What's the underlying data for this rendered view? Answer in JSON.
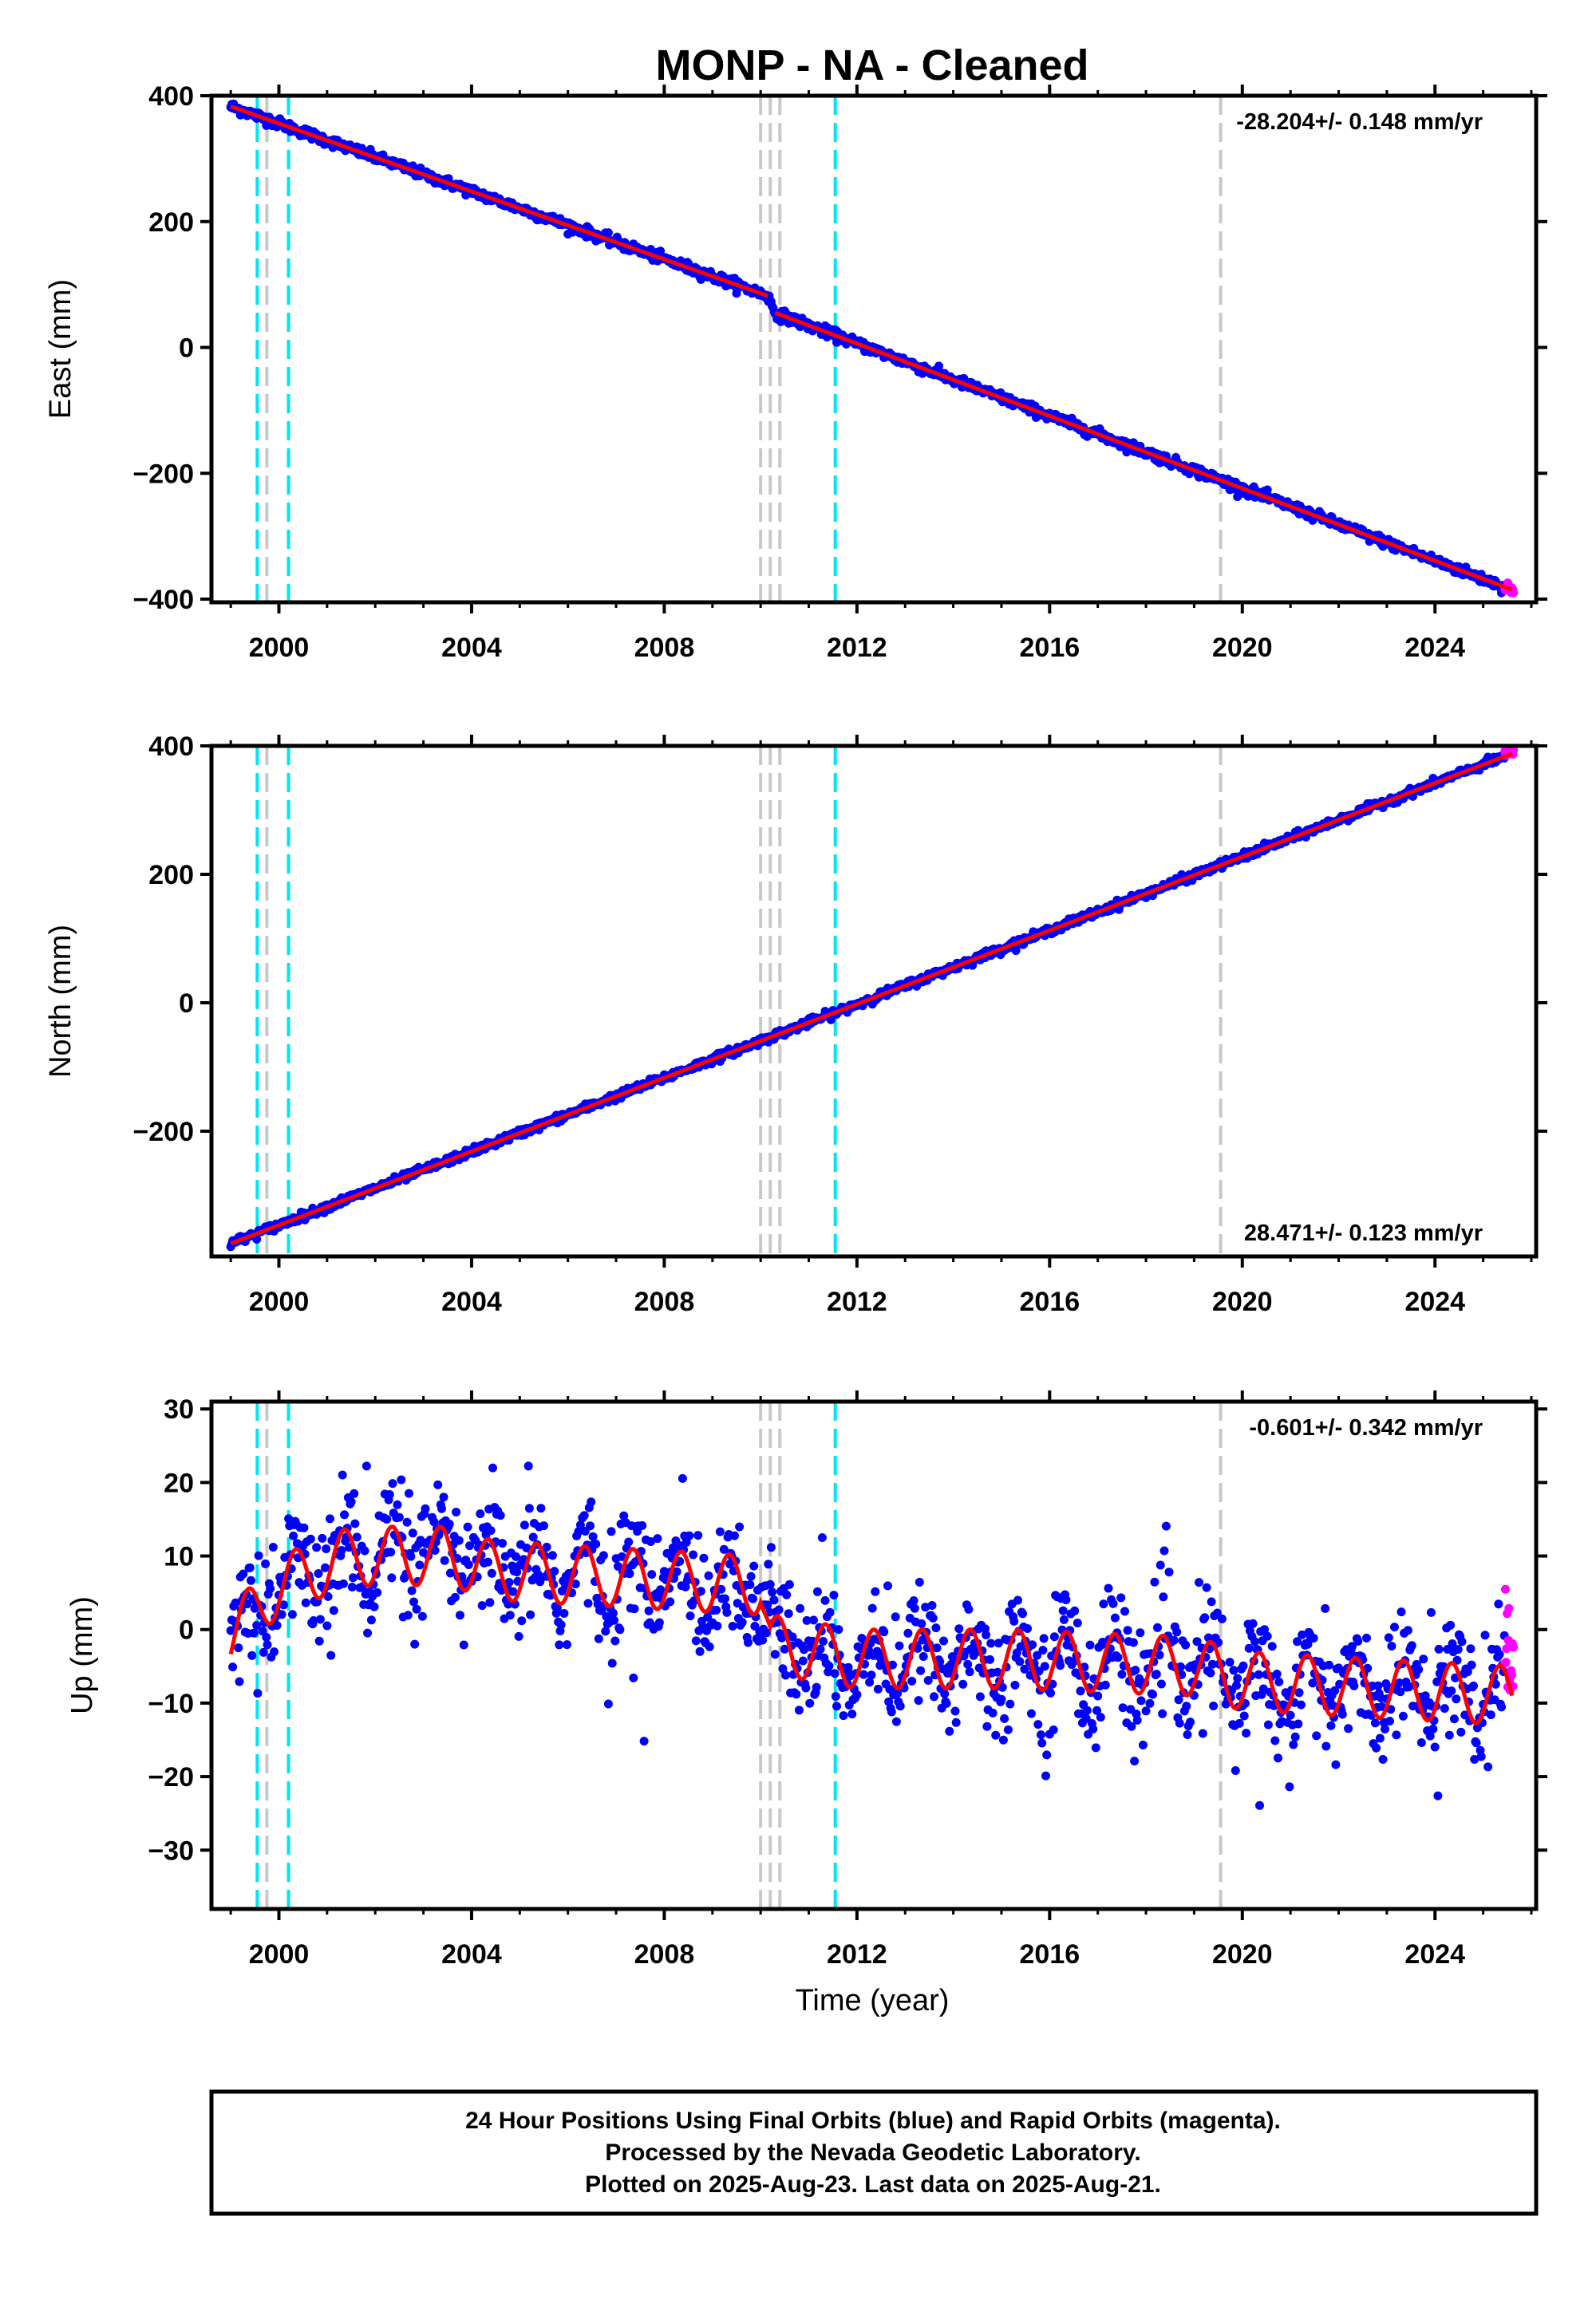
{
  "page": {
    "title": "MONP  - NA - Cleaned"
  },
  "colors": {
    "final_orbits": "#0000ff",
    "rapid_orbits": "#ff00ff",
    "model_fit": "#ff0000",
    "equipment_change": "#00e5ee",
    "earthquake": "#c8c8c8",
    "axes": "#000000"
  },
  "x_axis": {
    "label": "Time (year)",
    "range": [
      1998.6,
      2026.1
    ],
    "ticks": [
      2000,
      2004,
      2008,
      2012,
      2016,
      2020,
      2024
    ],
    "tick_labels": [
      "2000",
      "2004",
      "2008",
      "2012",
      "2016",
      "2020",
      "2024"
    ]
  },
  "vertical_markers": {
    "equipment_change_years": [
      1999.55,
      2000.2,
      2011.55
    ],
    "earthquake_years": [
      1999.75,
      2010.0,
      2010.2,
      2010.4,
      2019.55
    ]
  },
  "chart_data": [
    {
      "type": "scatter",
      "panel": "east",
      "ylabel": "East (mm)",
      "ylim": [
        -405,
        400
      ],
      "yticks": [
        400,
        200,
        0,
        -200,
        -400
      ],
      "ytick_labels": [
        "400",
        "200",
        "0",
        "−200",
        "−400"
      ],
      "rate_label": "-28.204+/- 0.148 mm/yr",
      "rate_position": "top-right",
      "series": [
        {
          "name": "Final Orbits (blue)",
          "trend": [
            [
              1999.0,
              383
            ],
            [
              2010.15,
              82
            ],
            [
              2010.3,
              55
            ],
            [
              2025.6,
              -385
            ]
          ],
          "scatter_mm": 4
        },
        {
          "name": "Rapid Orbits (magenta)",
          "x_range": [
            2025.45,
            2025.64
          ],
          "values_around": -383,
          "scatter_mm": 6
        }
      ],
      "fit": {
        "offsets": [
          [
            2010.2,
            -25
          ]
        ],
        "rate_mm_per_yr": -28.204
      }
    },
    {
      "type": "scatter",
      "panel": "north",
      "ylabel": "North (mm)",
      "ylim": [
        -395,
        400
      ],
      "yticks": [
        400,
        200,
        0,
        -200
      ],
      "ytick_labels": [
        "400",
        "200",
        "0",
        "−200"
      ],
      "rate_label": "28.471+/- 0.123 mm/yr",
      "rate_position": "bottom-right",
      "series": [
        {
          "name": "Final Orbits (blue)",
          "trend": [
            [
              1999.0,
              -375
            ],
            [
              2025.6,
              388
            ]
          ],
          "scatter_mm": 3
        },
        {
          "name": "Rapid Orbits (magenta)",
          "x_range": [
            2025.45,
            2025.64
          ],
          "values_around": 388,
          "scatter_mm": 4
        }
      ],
      "fit": {
        "rate_mm_per_yr": 28.471
      }
    },
    {
      "type": "scatter",
      "panel": "up",
      "ylabel": "Up (mm)",
      "xlabel": "Time (year)",
      "ylim": [
        -38,
        31
      ],
      "yticks": [
        30,
        20,
        10,
        0,
        -10,
        -20,
        -30
      ],
      "ytick_labels": [
        "30",
        "20",
        "10",
        "0",
        "−10",
        "−20",
        "−30"
      ],
      "rate_label": "-0.601+/- 0.342 mm/yr",
      "rate_position": "top-right",
      "series": [
        {
          "name": "Final Orbits (blue)",
          "baseline": [
            [
              1999.0,
              -1
            ],
            [
              2000.0,
              6
            ],
            [
              2001.5,
              10
            ],
            [
              2003.5,
              10
            ],
            [
              2004.5,
              8
            ],
            [
              2010.0,
              6
            ],
            [
              2010.2,
              -2
            ],
            [
              2012.0,
              -4
            ],
            [
              2015.0,
              -4
            ],
            [
              2019.0,
              -5
            ],
            [
              2020.0,
              -7
            ],
            [
              2025.6,
              -9
            ]
          ],
          "seasonal_amplitude_mm": 4,
          "scatter_mm": 4
        },
        {
          "name": "Rapid Orbits (magenta)",
          "x_range": [
            2025.45,
            2025.64
          ],
          "values_range": [
            -12,
            7
          ]
        }
      ],
      "fit": {
        "rate_mm_per_yr": -0.601,
        "seasonal_amplitude_mm": 4
      }
    }
  ],
  "footer_note": {
    "line1": "24 Hour Positions Using Final Orbits (blue) and Rapid Orbits (magenta).",
    "line2": "Processed by the Nevada Geodetic Laboratory.",
    "line3": "Plotted on 2025-Aug-23. Last data on 2025-Aug-21."
  }
}
